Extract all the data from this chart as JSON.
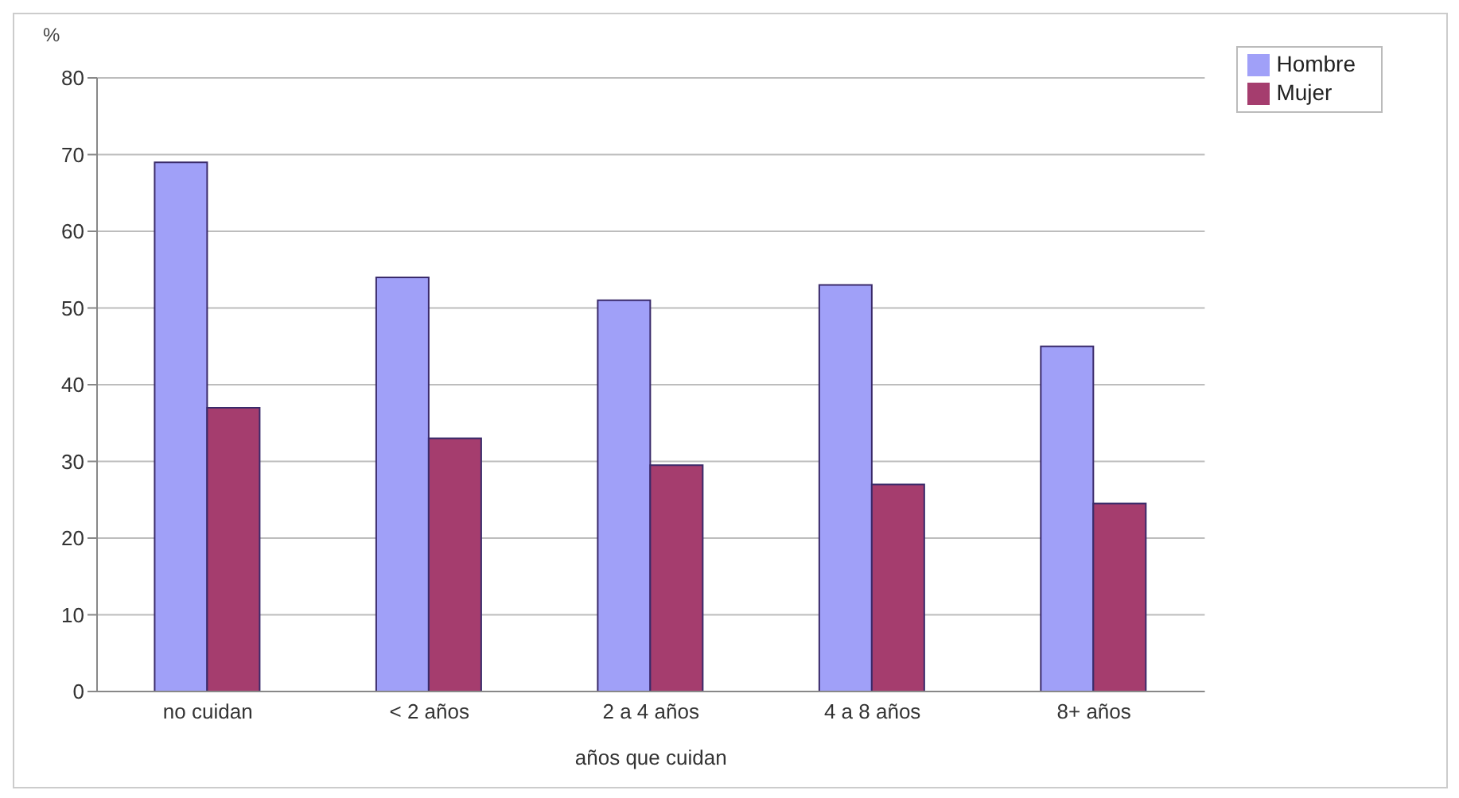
{
  "chart_data": {
    "type": "bar",
    "ylabel": "%",
    "xlabel": "años que cuidan",
    "categories": [
      "no cuidan",
      "< 2 años",
      "2 a 4 años",
      "4 a 8 años",
      "8+ años"
    ],
    "series": [
      {
        "name": "Hombre",
        "color": "#a0a0f8",
        "values": [
          69,
          54,
          51,
          53,
          45
        ]
      },
      {
        "name": "Mujer",
        "color": "#a53d6e",
        "values": [
          37,
          33,
          29.5,
          27,
          24.5
        ]
      }
    ],
    "ylim": [
      0,
      80
    ],
    "yticks": [
      0,
      10,
      20,
      30,
      40,
      50,
      60,
      70,
      80
    ],
    "grid": "y",
    "legend": "top right"
  }
}
